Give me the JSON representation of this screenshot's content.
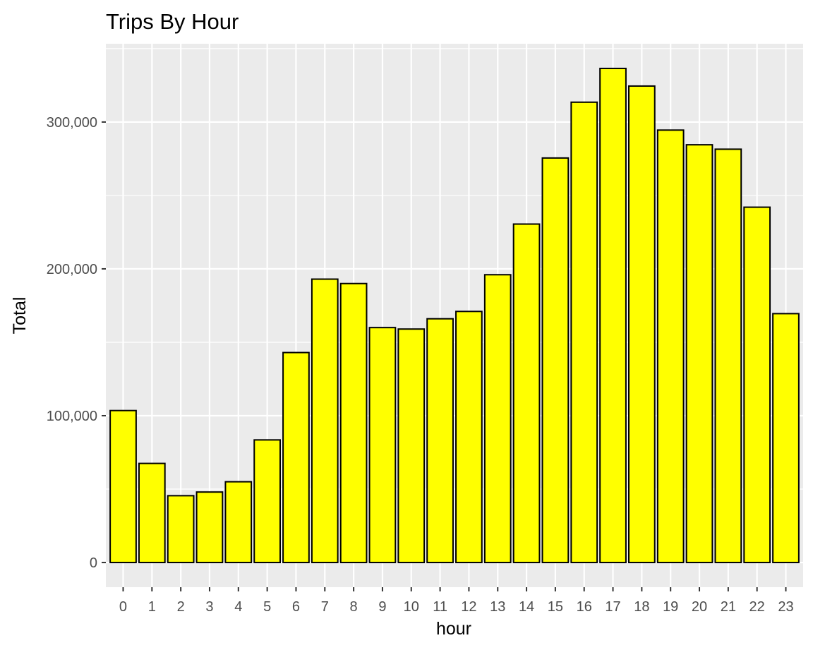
{
  "chart_data": {
    "type": "bar",
    "title": "Trips By Hour",
    "xlabel": "hour",
    "ylabel": "Total",
    "categories": [
      "0",
      "1",
      "2",
      "3",
      "4",
      "5",
      "6",
      "7",
      "8",
      "9",
      "10",
      "11",
      "12",
      "13",
      "14",
      "15",
      "16",
      "17",
      "18",
      "19",
      "20",
      "21",
      "22",
      "23"
    ],
    "values": [
      103500,
      67500,
      45500,
      48000,
      55000,
      83500,
      143000,
      193000,
      190000,
      160000,
      159000,
      166000,
      171000,
      196000,
      230500,
      275500,
      313500,
      336500,
      324500,
      294500,
      284500,
      281500,
      242000,
      169500
    ],
    "ylim": [
      -16800,
      353300
    ],
    "y_ticks": [
      0,
      100000,
      200000,
      300000
    ],
    "y_tick_labels": [
      "0",
      "100,000",
      "200,000",
      "300,000"
    ],
    "grid": true,
    "bar_fill": "#ffff00",
    "bar_outline": "#000000",
    "panel_background": "#ebebeb",
    "gridline_color": "#ffffff"
  }
}
